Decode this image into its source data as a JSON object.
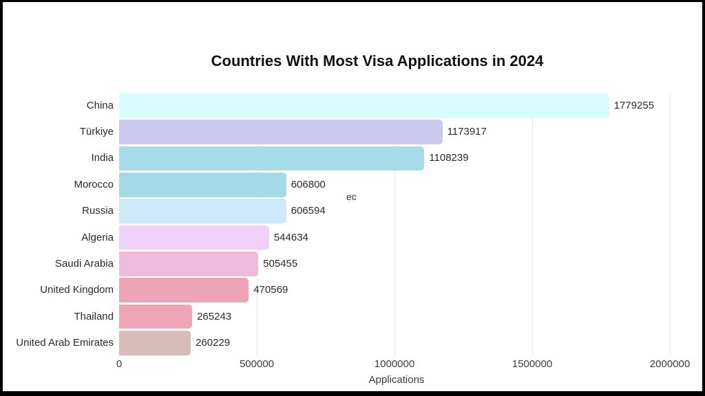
{
  "chart_data": {
    "type": "bar",
    "orientation": "horizontal",
    "title": "Countries With Most Visa Applications in 2024",
    "xlabel": "Applications",
    "categories": [
      "China",
      "Türkiye",
      "India",
      "Morocco",
      "Russia",
      "Algeria",
      "Saudi Arabia",
      "United Kingdom",
      "Thailand",
      "United Arab Emirates"
    ],
    "values": [
      1779255,
      1173917,
      1108239,
      606800,
      606594,
      544634,
      505455,
      470569,
      265243,
      260229
    ],
    "bar_colors": [
      "#d9fbfd",
      "#cac8ec",
      "#a6dbe8",
      "#a4dae7",
      "#cdeafb",
      "#f0d0f8",
      "#eebbdb",
      "#eda4b7",
      "#eda6b8",
      "#d8bcba"
    ],
    "xlim": [
      0,
      2000000
    ],
    "x_tick_values": [
      0,
      500000,
      1000000,
      1500000,
      2000000
    ],
    "x_tick_labels": [
      "0",
      "500000",
      "1000000",
      "1500000",
      "2000000"
    ],
    "grid": "vertical",
    "legend": "none",
    "annotation": "ec",
    "colors": {
      "background": "#ffffff",
      "frame_border": "#000000",
      "gridline": "#e3e7ee",
      "text": "#2a2a2a"
    }
  }
}
